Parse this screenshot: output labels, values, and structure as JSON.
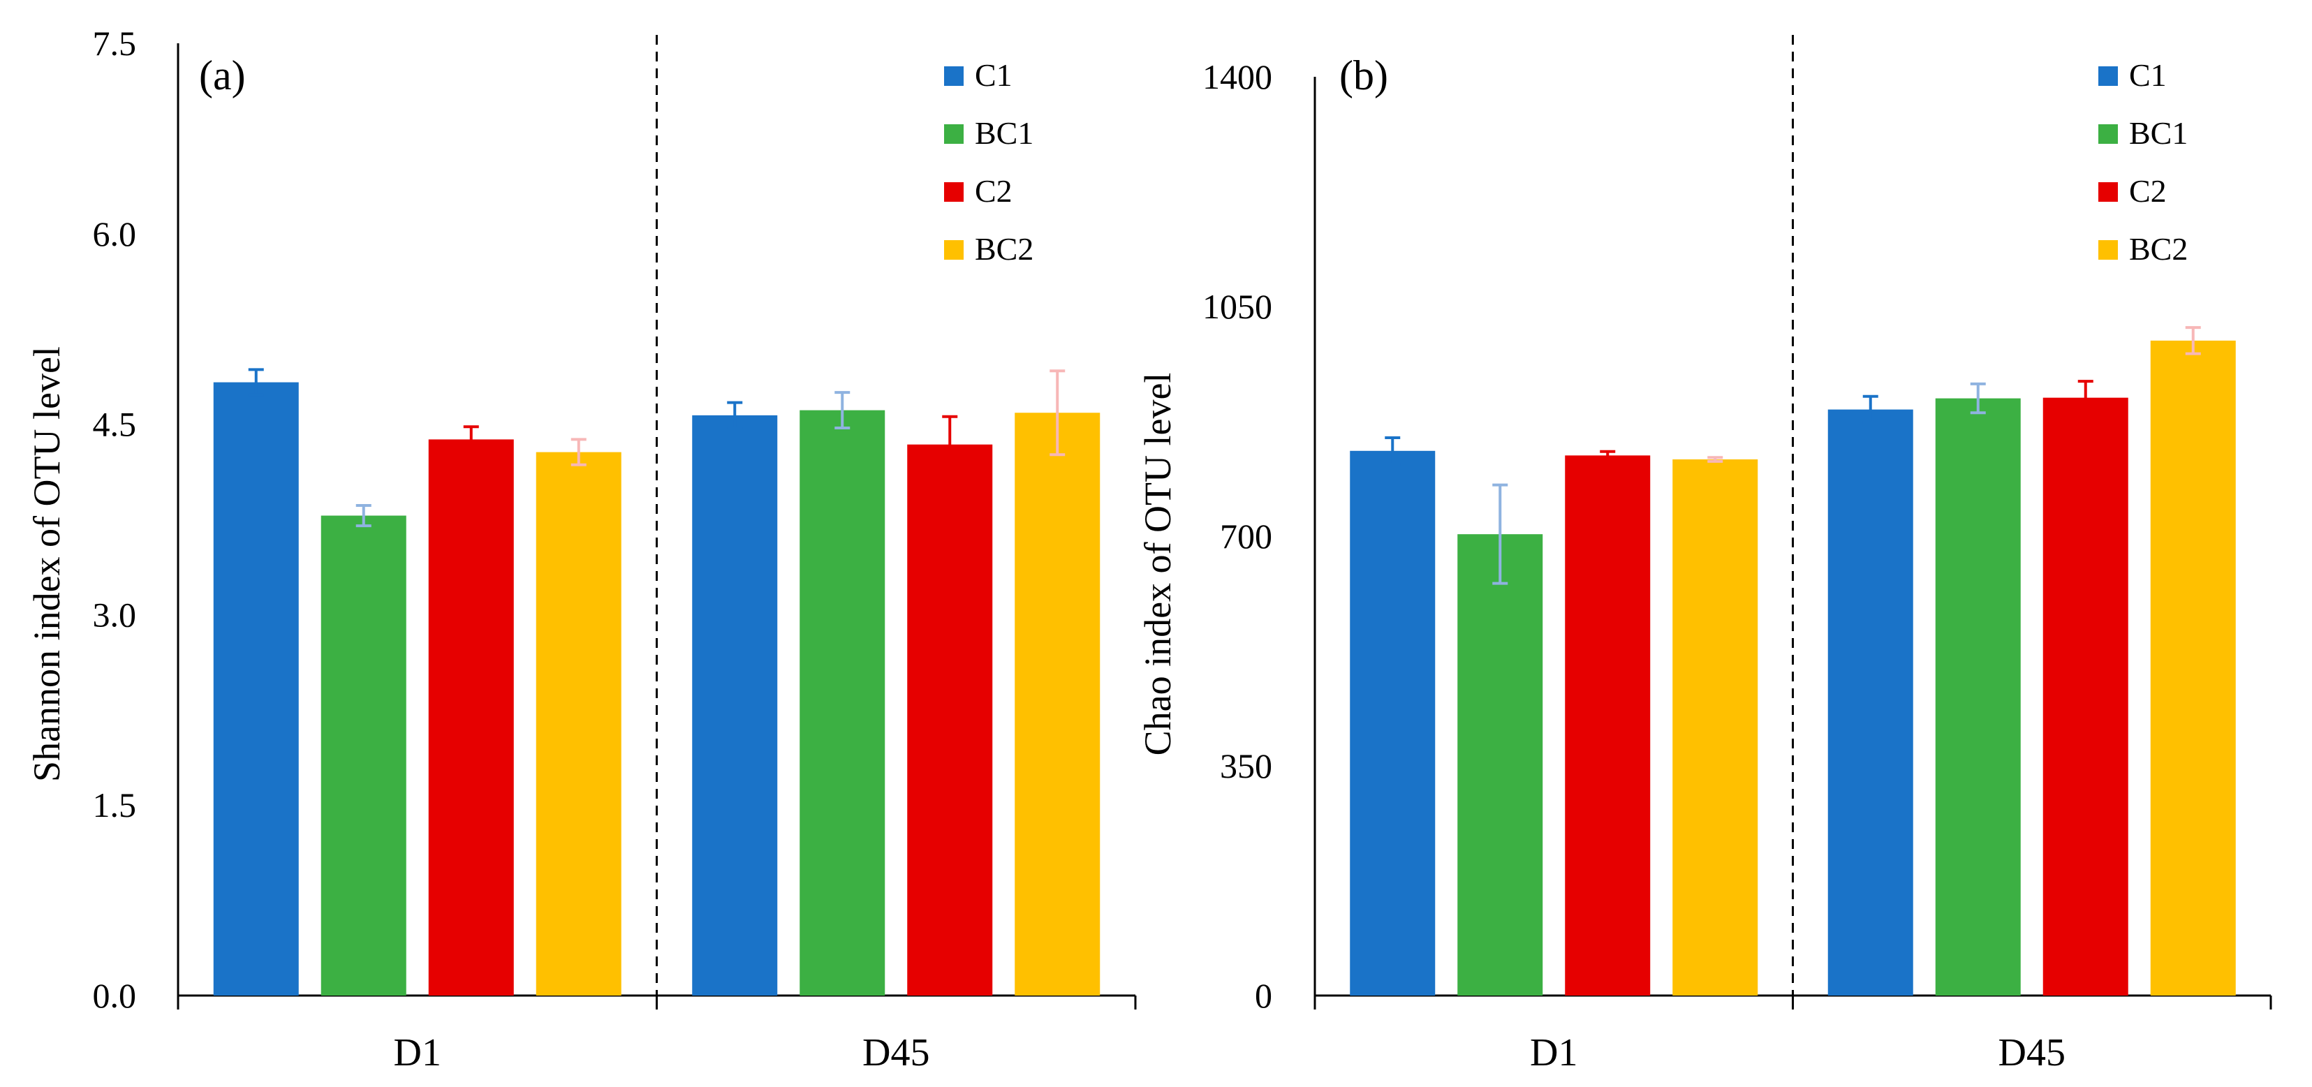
{
  "colors": {
    "C1": "#1a73c8",
    "BC1": "#3cb043",
    "C2": "#e60000",
    "BC2": "#ffc000",
    "err_C1": "#1a73c8",
    "err_BC1": "#8fb3e0",
    "err_C2": "#e60000",
    "err_BC2": "#f7b7b7"
  },
  "chart_data": [
    {
      "type": "bar",
      "panel_label": "(a)",
      "ylabel": "Shannon index of OTU level",
      "ylim": [
        0,
        7.5
      ],
      "yticks": [
        "0.0",
        "1.5",
        "3.0",
        "4.5",
        "6.0",
        "7.5"
      ],
      "categories": [
        "D1",
        "D45"
      ],
      "legend_position": "top-right",
      "separator": "dashed",
      "series": [
        {
          "name": "C1",
          "values": [
            4.83,
            4.57
          ],
          "errors": [
            0.1,
            0.1
          ]
        },
        {
          "name": "BC1",
          "values": [
            3.78,
            4.61
          ],
          "errors": [
            0.08,
            0.14
          ]
        },
        {
          "name": "C2",
          "values": [
            4.38,
            4.34
          ],
          "errors": [
            0.1,
            0.22
          ]
        },
        {
          "name": "BC2",
          "values": [
            4.28,
            4.59
          ],
          "errors": [
            0.1,
            0.33
          ]
        }
      ]
    },
    {
      "type": "bar",
      "panel_label": "(b)",
      "ylabel": "Chao index of OTU level",
      "ylim": [
        0,
        1400
      ],
      "yticks": [
        "0",
        "350",
        "700",
        "1050",
        "1400"
      ],
      "categories": [
        "D1",
        "D45"
      ],
      "legend_position": "top-right",
      "separator": "dashed",
      "series": [
        {
          "name": "C1",
          "values": [
            830,
            893
          ],
          "errors": [
            20,
            20
          ]
        },
        {
          "name": "BC1",
          "values": [
            703,
            910
          ],
          "errors": [
            75,
            22
          ]
        },
        {
          "name": "C2",
          "values": [
            823,
            911
          ],
          "errors": [
            6,
            25
          ]
        },
        {
          "name": "BC2",
          "values": [
            817,
            998
          ],
          "errors": [
            3,
            20
          ]
        }
      ]
    }
  ]
}
